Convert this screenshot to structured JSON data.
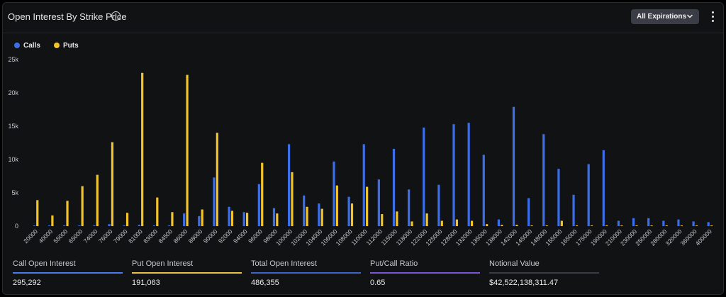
{
  "header": {
    "title": "Open Interest By Strike Price",
    "info_icon": "info-icon",
    "expirations_label": "All Expirations"
  },
  "legend": {
    "items": [
      {
        "label": "Calls",
        "color": "#3b6ee8"
      },
      {
        "label": "Puts",
        "color": "#f2c42a"
      }
    ]
  },
  "stats": [
    {
      "label": "Call Open Interest",
      "value": "295,292",
      "color": "#4a7be8"
    },
    {
      "label": "Put Open Interest",
      "value": "191,063",
      "color": "#e8c24a"
    },
    {
      "label": "Total Open Interest",
      "value": "486,355",
      "color": "#3f63c7"
    },
    {
      "label": "Put/Call Ratio",
      "value": "0.65",
      "color": "#7a55d6"
    },
    {
      "label": "Notional Value",
      "value": "$42,522,138,311.47",
      "color": "#3a3c44"
    }
  ],
  "chart_data": {
    "type": "bar",
    "ylim": [
      0,
      25000
    ],
    "yticks": [
      0,
      5000,
      10000,
      15000,
      20000,
      25000
    ],
    "ytick_labels": [
      "0",
      "5k",
      "10k",
      "15k",
      "20k",
      "25k"
    ],
    "grid": false,
    "legend_position": "top-left",
    "categories": [
      "20000",
      "40000",
      "55000",
      "65000",
      "74000",
      "76000",
      "79000",
      "81000",
      "83000",
      "84500",
      "86000",
      "88000",
      "90000",
      "92000",
      "94000",
      "96000",
      "98000",
      "100000",
      "102000",
      "104000",
      "106000",
      "108000",
      "110000",
      "112000",
      "115000",
      "118000",
      "122000",
      "125000",
      "128000",
      "132000",
      "135000",
      "138000",
      "142000",
      "145000",
      "148000",
      "155000",
      "165000",
      "175000",
      "190000",
      "210000",
      "230000",
      "250000",
      "280000",
      "320000",
      "360000",
      "400000"
    ],
    "category_labels_visible": true,
    "series": [
      {
        "name": "Calls",
        "color": "#3b6ee8",
        "values": [
          100,
          100,
          100,
          100,
          100,
          300,
          100,
          200,
          100,
          100,
          1900,
          1500,
          7300,
          2900,
          2100,
          6300,
          2700,
          12300,
          4600,
          3400,
          9700,
          4400,
          12300,
          7000,
          11600,
          5500,
          14800,
          6200,
          15300,
          15500,
          10700,
          1000,
          17900,
          4200,
          13800,
          8600,
          4700,
          9300,
          11400,
          800,
          1200,
          1200,
          800,
          1000,
          700,
          600
        ]
      },
      {
        "name": "Puts",
        "color": "#f2c42a",
        "values": [
          3900,
          1600,
          3800,
          6000,
          7700,
          12600,
          2000,
          23000,
          4300,
          2100,
          22700,
          2500,
          14000,
          2300,
          2000,
          9500,
          1900,
          8100,
          2900,
          2600,
          6100,
          3400,
          5900,
          1800,
          2200,
          700,
          1900,
          800,
          1000,
          800,
          300,
          200,
          200,
          100,
          100,
          800,
          100,
          100,
          100,
          100,
          100,
          100,
          100,
          100,
          100,
          100
        ]
      }
    ]
  }
}
